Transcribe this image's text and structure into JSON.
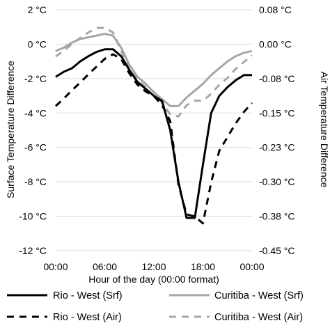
{
  "chart_data": {
    "type": "line",
    "xlabel": "Hour of the day (00:00 format)",
    "ylabel": "Surface Temperature Difference",
    "y2label": "Air Temperature Difference",
    "x_ticks": [
      "00:00",
      "06:00",
      "12:00",
      "18:00",
      "00:00"
    ],
    "xlim": [
      0,
      24
    ],
    "ylim": [
      -12,
      2
    ],
    "y_ticks": [
      "-12 °C",
      "-10 °C",
      "-8 °C",
      "-6 °C",
      "-4 °C",
      "-2 °C",
      "0 °C",
      "2 °C"
    ],
    "y2lim": [
      -0.45,
      0.08
    ],
    "y2_ticks": [
      "-0.45 °C",
      "-0.38 °C",
      "-0.30 °C",
      "-0.23 °C",
      "-0.15 °C",
      "-0.08 °C",
      "0.00 °C",
      "0.08 °C"
    ],
    "grid": "horizontal",
    "legend_position": "bottom",
    "series": [
      {
        "name": "Rio - West (Srf)",
        "axis": "left",
        "color": "#000000",
        "dash": "solid",
        "x": [
          0,
          1,
          2,
          3,
          4,
          5,
          6,
          7,
          8,
          9,
          10,
          11,
          12,
          13,
          14,
          15,
          16,
          17,
          18,
          19,
          20,
          21,
          22,
          23,
          24
        ],
        "y": [
          -1.9,
          -1.6,
          -1.4,
          -1.0,
          -0.7,
          -0.45,
          -0.3,
          -0.3,
          -0.7,
          -1.5,
          -2.2,
          -2.6,
          -3.0,
          -3.3,
          -5.0,
          -8.0,
          -10.1,
          -10.1,
          -7.0,
          -4.0,
          -3.0,
          -2.5,
          -2.1,
          -1.8,
          -1.8
        ]
      },
      {
        "name": "Curitiba - West (Srf)",
        "axis": "left",
        "color": "#a6a6a6",
        "dash": "solid",
        "x": [
          0,
          1,
          2,
          3,
          4,
          5,
          6,
          7,
          8,
          9,
          10,
          11,
          12,
          13,
          14,
          15,
          16,
          17,
          18,
          19,
          20,
          21,
          22,
          23,
          24
        ],
        "y": [
          -0.4,
          -0.2,
          0.1,
          0.3,
          0.4,
          0.5,
          0.6,
          0.5,
          -0.2,
          -1.2,
          -1.9,
          -2.3,
          -2.8,
          -3.2,
          -3.6,
          -3.6,
          -3.1,
          -2.7,
          -2.3,
          -1.8,
          -1.4,
          -1.0,
          -0.7,
          -0.5,
          -0.4
        ]
      },
      {
        "name": "Rio - West (Air)",
        "axis": "right",
        "color": "#000000",
        "dash": "dashed",
        "x": [
          0,
          1,
          2,
          3,
          4,
          5,
          6,
          7,
          8,
          9,
          10,
          11,
          12,
          13,
          14,
          15,
          16,
          17,
          18,
          19,
          20,
          21,
          22,
          23,
          24
        ],
        "y": [
          -0.132,
          -0.115,
          -0.097,
          -0.08,
          -0.062,
          -0.045,
          -0.028,
          -0.018,
          -0.028,
          -0.06,
          -0.085,
          -0.1,
          -0.11,
          -0.13,
          -0.165,
          -0.305,
          -0.37,
          -0.375,
          -0.39,
          -0.3,
          -0.23,
          -0.2,
          -0.17,
          -0.145,
          -0.125
        ]
      },
      {
        "name": "Curitiba - West (Air)",
        "axis": "right",
        "color": "#a6a6a6",
        "dash": "dashed",
        "x": [
          0,
          1,
          2,
          3,
          4,
          5,
          6,
          7,
          8,
          9,
          10,
          11,
          12,
          13,
          14,
          15,
          16,
          17,
          18,
          19,
          20,
          21,
          22,
          23,
          24
        ],
        "y": [
          -0.023,
          -0.01,
          0.005,
          0.018,
          0.03,
          0.04,
          0.04,
          0.03,
          -0.01,
          -0.05,
          -0.075,
          -0.09,
          -0.1,
          -0.125,
          -0.15,
          -0.155,
          -0.13,
          -0.12,
          -0.12,
          -0.105,
          -0.085,
          -0.07,
          -0.05,
          -0.035,
          -0.02
        ]
      }
    ]
  }
}
